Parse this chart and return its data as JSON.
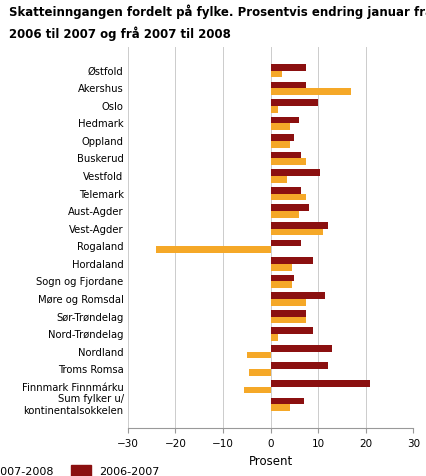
{
  "title_line1": "Skatteinngangen fordelt på fylke. Prosentvis endring januar frå",
  "title_line2": "2006 til 2007 og frå 2007 til 2008",
  "categories": [
    "Østfold",
    "Akershus",
    "Oslo",
    "Hedmark",
    "Oppland",
    "Buskerud",
    "Vestfold",
    "Telemark",
    "Aust-Agder",
    "Vest-Agder",
    "Rogaland",
    "Hordaland",
    "Sogn og Fjordane",
    "Møre og Romsdal",
    "Sør-Trøndelag",
    "Nord-Trøndelag",
    "Nordland",
    "Troms Romsa",
    "Finnmark Finnmárku",
    "Sum fylker u/\nkontinentalsokkelen"
  ],
  "values_2007_2008": [
    2.5,
    17.0,
    1.5,
    4.0,
    4.0,
    7.5,
    3.5,
    7.5,
    6.0,
    11.0,
    -24.0,
    4.5,
    4.5,
    7.5,
    7.5,
    1.5,
    -5.0,
    -4.5,
    -5.5,
    4.0
  ],
  "values_2006_2007": [
    7.5,
    7.5,
    10.0,
    6.0,
    5.0,
    6.5,
    10.5,
    6.5,
    8.0,
    12.0,
    6.5,
    9.0,
    5.0,
    11.5,
    7.5,
    9.0,
    13.0,
    12.0,
    21.0,
    7.0
  ],
  "color_2007_2008": "#f5a828",
  "color_2006_2007": "#8b1010",
  "xlabel": "Prosent",
  "xlim": [
    -30,
    30
  ],
  "xticks": [
    -30,
    -20,
    -10,
    0,
    10,
    20,
    30
  ],
  "bar_height": 0.38,
  "background_color": "#ffffff",
  "grid_color": "#cccccc",
  "legend_label_1": "2007-2008",
  "legend_label_2": "2006-2007"
}
